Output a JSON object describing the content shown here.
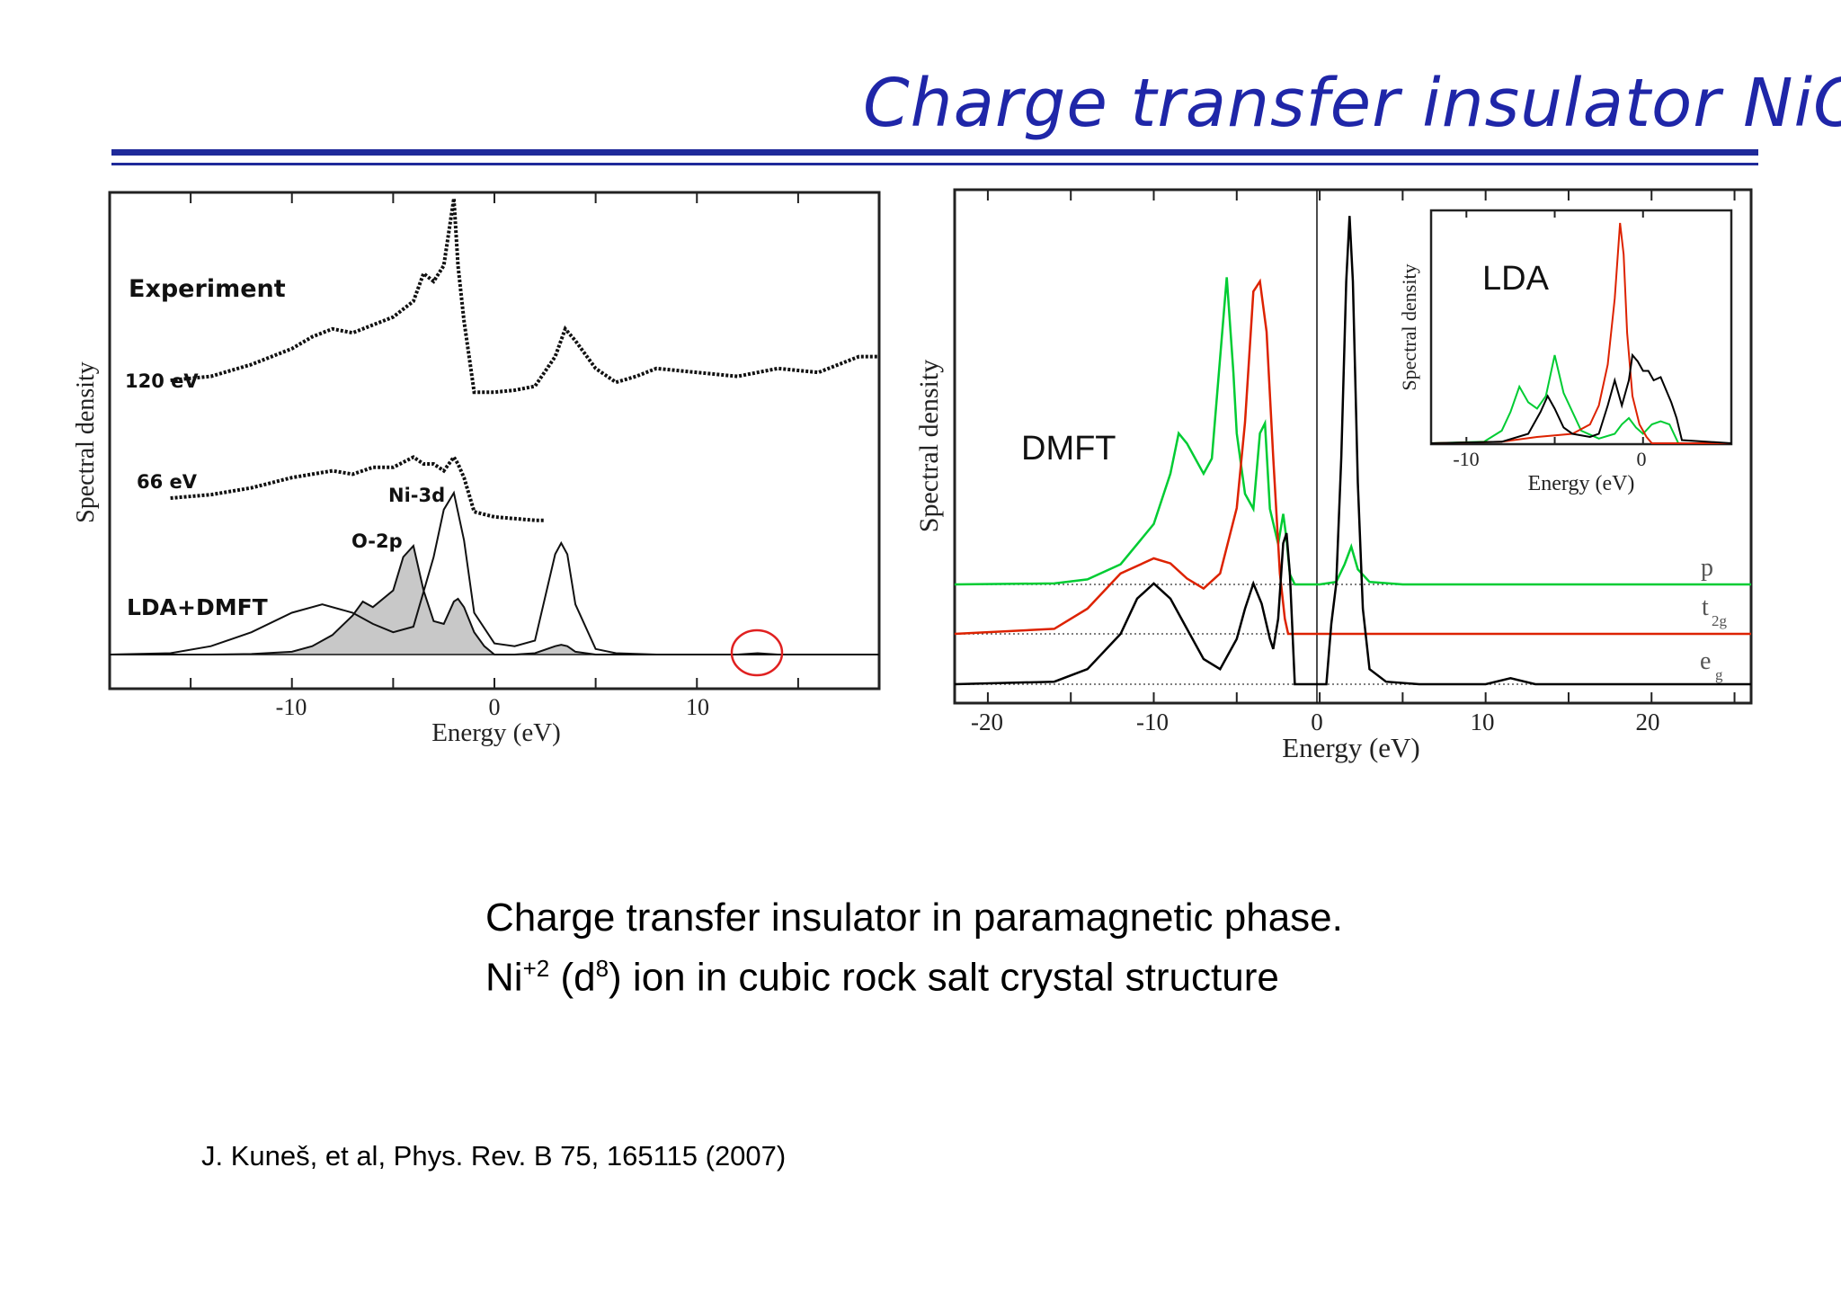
{
  "slide": {
    "title": "Charge transfer insulator NiO",
    "caption_line1": "Charge transfer insulator in paramagnetic phase.",
    "caption_line2": {
      "pre": "Ni",
      "charge": "+2",
      "mid": " (d",
      "orbital": "8",
      "post": ") ion in cubic rock salt crystal structure"
    },
    "reference": "J. Kuneš, et al, Phys. Rev. B 75, 165115 (2007)",
    "rule_color": "#1f2a9a",
    "title_color": "#1f26a8"
  },
  "chart_data": [
    {
      "type": "line",
      "xlabel": "Energy (eV)",
      "ylabel": "Spectral density",
      "xlim": [
        -19,
        19
      ],
      "x_ticks": [
        -10,
        0,
        10
      ],
      "annotations": [
        "Experiment",
        "120 eV",
        "66 eV",
        "Ni-3d",
        "O-2p",
        "LDA+DMFT"
      ],
      "series": [
        {
          "name": "120 eV",
          "x": [
            -16,
            -14,
            -12,
            -10,
            -9,
            -8,
            -7,
            -6,
            -5,
            -4,
            -3.5,
            -3,
            -2.5,
            -2,
            -1.8,
            -1.5,
            -1,
            0,
            1,
            2,
            3,
            3.5,
            4,
            5,
            6,
            7,
            8,
            10,
            12,
            14,
            16,
            18,
            19
          ],
          "y": [
            1.0,
            1.1,
            1.4,
            1.8,
            2.1,
            2.3,
            2.2,
            2.4,
            2.6,
            3.0,
            3.7,
            3.5,
            3.9,
            5.6,
            3.9,
            2.5,
            0.7,
            0.7,
            0.75,
            0.85,
            1.6,
            2.3,
            2.0,
            1.3,
            0.95,
            1.1,
            1.3,
            1.2,
            1.1,
            1.3,
            1.2,
            1.6,
            1.6
          ]
        },
        {
          "name": "66 eV",
          "x": [
            -16,
            -14,
            -12,
            -10,
            -9,
            -8,
            -7,
            -6,
            -5,
            -4,
            -3.5,
            -3,
            -2.5,
            -2,
            -1.8,
            -1.5,
            -1,
            0,
            1,
            2,
            2.5
          ],
          "y": [
            1.0,
            1.1,
            1.3,
            1.6,
            1.7,
            1.8,
            1.7,
            1.9,
            1.9,
            2.2,
            2.0,
            2.0,
            1.8,
            2.2,
            2.0,
            1.6,
            0.6,
            0.45,
            0.4,
            0.35,
            0.35
          ]
        },
        {
          "name": "Ni-3d",
          "x": [
            -19,
            -16,
            -14,
            -12,
            -10,
            -8.5,
            -7,
            -6,
            -5,
            -4,
            -3,
            -2.5,
            -2,
            -1.5,
            -1,
            0,
            1,
            2,
            3,
            3.3,
            3.6,
            4,
            5,
            6,
            8,
            10,
            12,
            13,
            14,
            16,
            19
          ],
          "y": [
            0,
            0.05,
            0.3,
            0.8,
            1.5,
            1.8,
            1.5,
            1.1,
            0.8,
            1.0,
            3.5,
            5.2,
            5.8,
            4.1,
            1.5,
            0.4,
            0.3,
            0.5,
            3.6,
            4.0,
            3.6,
            1.8,
            0.2,
            0.05,
            0,
            0,
            0,
            0.05,
            0,
            0,
            0
          ]
        },
        {
          "name": "O-2p",
          "x": [
            -19,
            -14,
            -12,
            -10,
            -9,
            -8,
            -7,
            -6.5,
            -6,
            -5,
            -4.5,
            -4,
            -3.5,
            -3,
            -2.5,
            -2,
            -1.8,
            -1.5,
            -1,
            -0.5,
            0,
            1,
            2,
            3,
            3.3,
            3.6,
            4,
            5,
            19
          ],
          "y": [
            0,
            0,
            0.02,
            0.1,
            0.3,
            0.7,
            1.4,
            1.9,
            1.7,
            2.3,
            3.5,
            3.9,
            2.3,
            1.2,
            1.1,
            1.9,
            2.0,
            1.7,
            0.8,
            0.3,
            0,
            0,
            0.05,
            0.3,
            0.35,
            0.3,
            0.1,
            0,
            0
          ]
        }
      ]
    },
    {
      "type": "line",
      "xlabel": "Energy (eV)",
      "ylabel": "Spectral density",
      "xlim": [
        -22,
        26
      ],
      "x_ticks": [
        -20,
        -10,
        0,
        10,
        20
      ],
      "annotations": [
        "DMFT",
        "p",
        "t",
        "2g",
        "e",
        "g"
      ],
      "series": [
        {
          "name": "p",
          "color": "#00cc33",
          "x": [
            -22,
            -16,
            -14,
            -12,
            -10,
            -9,
            -8.5,
            -8,
            -7,
            -6.5,
            -6,
            -5.6,
            -5.2,
            -5,
            -4.5,
            -4,
            -3.6,
            -3.3,
            -3,
            -2.5,
            -2.2,
            -2,
            -1.8,
            -1.5,
            0,
            1,
            1.5,
            1.9,
            2.3,
            3,
            5,
            26
          ],
          "y": [
            0,
            0.02,
            0.1,
            0.4,
            1.2,
            2.2,
            3.0,
            2.8,
            2.2,
            2.5,
            4.5,
            6.1,
            4.2,
            3.0,
            1.8,
            1.5,
            3.0,
            3.2,
            1.5,
            0.8,
            1.4,
            0.9,
            0.2,
            0,
            0,
            0.05,
            0.4,
            0.75,
            0.3,
            0.05,
            0,
            0
          ]
        },
        {
          "name": "t2g",
          "color": "#dd2200",
          "x": [
            -22,
            -16,
            -14,
            -12,
            -10,
            -9,
            -8,
            -7,
            -6,
            -5,
            -4.5,
            -4,
            -3.6,
            -3.2,
            -2.8,
            -2.4,
            -2.1,
            -1.9,
            -1.5,
            26
          ],
          "y": [
            0,
            0.1,
            0.5,
            1.2,
            1.5,
            1.4,
            1.1,
            0.9,
            1.2,
            2.5,
            4.2,
            6.8,
            7.0,
            6.0,
            3.5,
            1.2,
            0.3,
            0,
            0,
            0
          ]
        },
        {
          "name": "eg",
          "color": "#000000",
          "x": [
            -22,
            -16,
            -14,
            -12,
            -11,
            -10,
            -9,
            -8,
            -7,
            -6,
            -5,
            -4.5,
            -4,
            -3.5,
            -3,
            -2.8,
            -2.5,
            -2.2,
            -2,
            -1.8,
            -1.5,
            -0.5,
            0.4,
            0.7,
            1,
            1.3,
            1.6,
            1.8,
            2,
            2.3,
            2.6,
            3,
            4,
            6,
            10,
            11.5,
            13,
            14,
            26
          ],
          "y": [
            0,
            0.05,
            0.3,
            1.0,
            1.7,
            2.0,
            1.7,
            1.1,
            0.5,
            0.3,
            0.9,
            1.5,
            2.0,
            1.6,
            0.9,
            0.7,
            1.3,
            2.8,
            3.0,
            2.2,
            0,
            0,
            0,
            1.2,
            2.0,
            4.5,
            8.0,
            9.3,
            8.0,
            4.0,
            1.5,
            0.3,
            0.05,
            0,
            0,
            0.12,
            0,
            0,
            0
          ]
        }
      ]
    },
    {
      "type": "line",
      "title": "LDA",
      "xlabel": "Energy (eV)",
      "ylabel": "Spectral density",
      "xlim": [
        -12,
        5
      ],
      "x_ticks": [
        -10,
        0
      ],
      "series": [
        {
          "name": "O p",
          "color": "#00cc33",
          "x": [
            -12,
            -9,
            -8,
            -7.5,
            -7,
            -6.5,
            -6,
            -5.5,
            -5,
            -4.5,
            -3.5,
            -2.5,
            -1.6,
            -1.2,
            -0.8,
            -0.4,
            0,
            0.5,
            1,
            1.5,
            2,
            5
          ],
          "y": [
            0,
            0.05,
            0.4,
            1.0,
            1.8,
            1.3,
            1.1,
            1.5,
            2.8,
            1.6,
            0.4,
            0.15,
            0.3,
            0.6,
            0.8,
            0.5,
            0.3,
            0.6,
            0.7,
            0.6,
            0,
            0
          ]
        },
        {
          "name": "t2g",
          "color": "#dd2200",
          "x": [
            -12,
            -8,
            -6,
            -4,
            -3,
            -2.5,
            -2,
            -1.6,
            -1.3,
            -1.1,
            -0.9,
            -0.6,
            -0.2,
            0.2,
            0.5,
            5
          ],
          "y": [
            0,
            0.05,
            0.2,
            0.3,
            0.6,
            1.2,
            2.5,
            4.6,
            7.0,
            6.0,
            3.5,
            1.5,
            0.6,
            0.2,
            0,
            0
          ]
        },
        {
          "name": "eg",
          "color": "#000000",
          "x": [
            -12,
            -8,
            -6.5,
            -5.8,
            -5.4,
            -5,
            -4.5,
            -4,
            -3,
            -2.5,
            -2,
            -1.6,
            -1.2,
            -0.8,
            -0.6,
            -0.3,
            0,
            0.3,
            0.6,
            1,
            1.3,
            1.6,
            1.9,
            2.2,
            5
          ],
          "y": [
            0,
            0.05,
            0.3,
            1.0,
            1.5,
            1.1,
            0.5,
            0.3,
            0.2,
            0.3,
            1.2,
            2.0,
            1.2,
            2.0,
            2.8,
            2.6,
            2.3,
            2.3,
            2.0,
            2.1,
            1.7,
            1.3,
            0.8,
            0.1,
            0
          ]
        }
      ]
    }
  ]
}
